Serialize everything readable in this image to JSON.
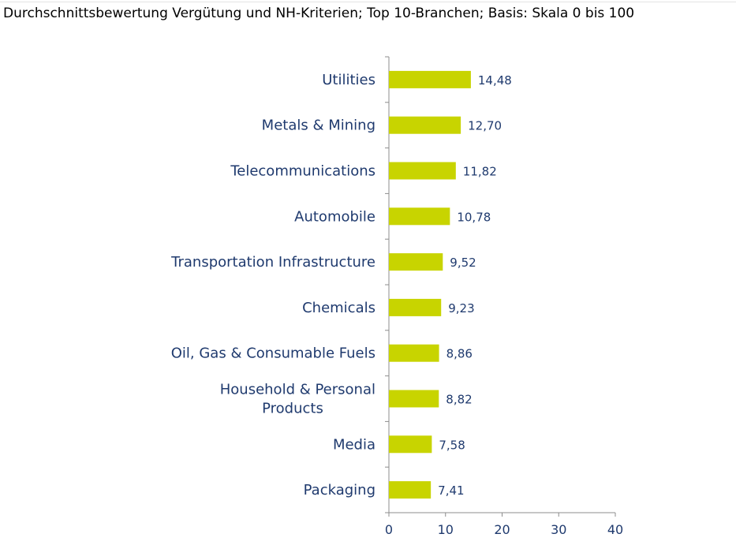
{
  "title": "Durchschnittsbewertung Vergütung und NH-Kriterien; Top 10-Branchen; Basis: Skala 0 bis 100",
  "colors": {
    "bar": "#c8d400",
    "label_text": "#1f3a6e",
    "axis": "#8c8c8c"
  },
  "chart_data": {
    "type": "bar",
    "orientation": "horizontal",
    "categories": [
      "Utilities",
      "Metals & Mining",
      "Telecommunications",
      "Automobile",
      "Transportation Infrastructure",
      "Chemicals",
      "Oil, Gas & Consumable Fuels",
      "Household & Personal Products",
      "Media",
      "Packaging"
    ],
    "category_lines": [
      [
        "Utilities"
      ],
      [
        "Metals & Mining"
      ],
      [
        "Telecommunications"
      ],
      [
        "Automobile"
      ],
      [
        "Transportation Infrastructure"
      ],
      [
        "Chemicals"
      ],
      [
        "Oil, Gas & Consumable Fuels"
      ],
      [
        "Household & Personal",
        "Products"
      ],
      [
        "Media"
      ],
      [
        "Packaging"
      ]
    ],
    "values": [
      14.48,
      12.7,
      11.82,
      10.78,
      9.52,
      9.23,
      8.86,
      8.82,
      7.58,
      7.41
    ],
    "value_labels": [
      "14,48",
      "12,70",
      "11,82",
      "10,78",
      "9,52",
      "9,23",
      "8,86",
      "8,82",
      "7,58",
      "7,41"
    ],
    "xlim": [
      0,
      40
    ],
    "x_ticks": [
      0,
      10,
      20,
      30,
      40
    ],
    "x_tick_labels": [
      "0",
      "10",
      "20",
      "30",
      "40"
    ],
    "grid": false,
    "legend": "none"
  }
}
